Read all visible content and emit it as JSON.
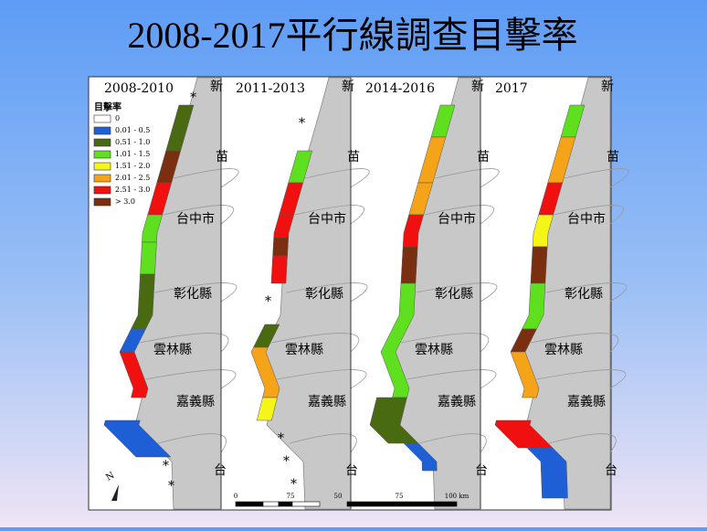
{
  "title": "2008-2017平行線調查目擊率",
  "panels": [
    {
      "label": "2008-2010"
    },
    {
      "label": "2011-2013"
    },
    {
      "label": "2014-2016"
    },
    {
      "label": "2017"
    }
  ],
  "legend": {
    "title": "目擊率",
    "items": [
      {
        "label": "0",
        "color": "#ffffff"
      },
      {
        "label": "0.01 - 0.5",
        "color": "#1f5fd6"
      },
      {
        "label": "0.51 - 1.0",
        "color": "#4a6a12"
      },
      {
        "label": "1.01 - 1.5",
        "color": "#5ee01e"
      },
      {
        "label": "1.51 - 2.0",
        "color": "#f5f51a"
      },
      {
        "label": "2.01 - 2.5",
        "color": "#f5a41a"
      },
      {
        "label": "2.51 - 3.0",
        "color": "#f01010"
      },
      {
        "label": "> 3.0",
        "color": "#7a3010"
      }
    ]
  },
  "places": [
    "苗",
    "台中市",
    "彰化縣",
    "雲林縣",
    "嘉義縣",
    "新",
    "台"
  ],
  "no_data_mark": "*",
  "north": "N",
  "scale": [
    "0",
    "75",
    "50",
    "75",
    "100 km"
  ]
}
